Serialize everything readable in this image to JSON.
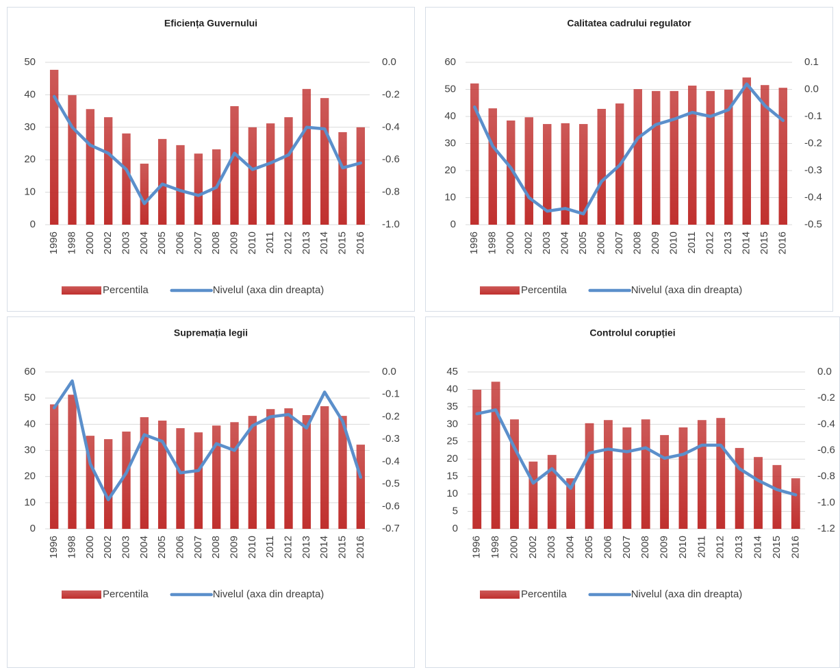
{
  "chart_data": [
    {
      "type": "combo",
      "title": "Eficiența Guvernului",
      "categories": [
        "1996",
        "1998",
        "2000",
        "2002",
        "2003",
        "2004",
        "2005",
        "2006",
        "2007",
        "2008",
        "2009",
        "2010",
        "2011",
        "2012",
        "2013",
        "2014",
        "2015",
        "2016"
      ],
      "series": [
        {
          "name": "Percentila",
          "color": "#c0302e",
          "values": [
            47.7,
            39.9,
            35.6,
            33.1,
            28.1,
            18.8,
            26.4,
            24.5,
            21.9,
            23.2,
            36.5,
            30.0,
            31.2,
            33.1,
            41.8,
            39.0,
            28.5,
            30.0
          ]
        },
        {
          "name": "Nivelul (axa din dreapta)",
          "color": "#5b8fcb",
          "axis": "y2",
          "values": [
            -0.21,
            -0.4,
            -0.51,
            -0.56,
            -0.66,
            -0.87,
            -0.75,
            -0.79,
            -0.82,
            -0.77,
            -0.56,
            -0.66,
            -0.62,
            -0.57,
            -0.4,
            -0.41,
            -0.65,
            -0.62
          ]
        }
      ],
      "ylim": [
        0,
        50
      ],
      "yticks": [
        0,
        10,
        20,
        30,
        40,
        50
      ],
      "y2lim": [
        -1,
        0
      ],
      "y2ticks": [
        {
          "value": 0,
          "label": "0.0"
        },
        -0.2,
        -0.4,
        -0.6,
        -0.8,
        {
          "value": -1,
          "label": "-1.0"
        }
      ],
      "grid": true
    },
    {
      "type": "combo",
      "title": "Calitatea cadrului regulator",
      "categories": [
        "1996",
        "1998",
        "2000",
        "2002",
        "2003",
        "2004",
        "2005",
        "2006",
        "2007",
        "2008",
        "2009",
        "2010",
        "2011",
        "2012",
        "2013",
        "2014",
        "2015",
        "2016"
      ],
      "series": [
        {
          "name": "Percentila",
          "color": "#c0302e",
          "values": [
            52.2,
            43.0,
            38.5,
            39.7,
            37.2,
            37.5,
            37.2,
            42.8,
            44.8,
            50.1,
            49.4,
            49.4,
            51.4,
            49.4,
            49.9,
            54.4,
            51.6,
            50.6
          ]
        },
        {
          "name": "Nivelul (axa din dreapta)",
          "color": "#5b8fcb",
          "axis": "y2",
          "values": [
            -0.065,
            -0.21,
            -0.29,
            -0.4,
            -0.45,
            -0.44,
            -0.46,
            -0.34,
            -0.28,
            -0.18,
            -0.13,
            -0.11,
            -0.085,
            -0.1,
            -0.075,
            0.02,
            -0.06,
            -0.115
          ]
        }
      ],
      "ylim": [
        0,
        60
      ],
      "yticks": [
        0,
        10,
        20,
        30,
        40,
        50,
        60
      ],
      "y2lim": [
        -0.5,
        0.1
      ],
      "y2ticks": [
        0.1,
        {
          "value": 0,
          "label": "0.0"
        },
        -0.1,
        -0.2,
        -0.3,
        -0.4,
        -0.5
      ],
      "grid": true
    },
    {
      "type": "combo",
      "title": "Supremația legii",
      "categories": [
        "1996",
        "1998",
        "2000",
        "2002",
        "2003",
        "2004",
        "2005",
        "2006",
        "2007",
        "2008",
        "2009",
        "2010",
        "2011",
        "2012",
        "2013",
        "2014",
        "2015",
        "2016"
      ],
      "series": [
        {
          "name": "Percentila",
          "color": "#c0302e",
          "values": [
            47.6,
            51.3,
            35.6,
            34.3,
            37.2,
            42.7,
            41.4,
            38.5,
            36.9,
            39.5,
            40.8,
            43.2,
            45.8,
            46.1,
            43.5,
            46.9,
            43.2,
            32.2
          ]
        },
        {
          "name": "Nivelul (axa din dreapta)",
          "color": "#5b8fcb",
          "axis": "y2",
          "values": [
            -0.16,
            -0.04,
            -0.41,
            -0.57,
            -0.45,
            -0.28,
            -0.31,
            -0.45,
            -0.44,
            -0.32,
            -0.35,
            -0.24,
            -0.2,
            -0.19,
            -0.25,
            -0.09,
            -0.22,
            -0.47
          ]
        }
      ],
      "ylim": [
        0,
        60
      ],
      "yticks": [
        0,
        10,
        20,
        30,
        40,
        50,
        60
      ],
      "y2lim": [
        -0.7,
        0
      ],
      "y2ticks": [
        {
          "value": 0,
          "label": "0.0"
        },
        -0.1,
        -0.2,
        -0.3,
        -0.4,
        -0.5,
        -0.6,
        -0.7
      ],
      "grid": true
    },
    {
      "type": "combo",
      "title": "Controlul corupției",
      "categories": [
        "1996",
        "1998",
        "2000",
        "2002",
        "2003",
        "2004",
        "2005",
        "2006",
        "2007",
        "2008",
        "2009",
        "2010",
        "2011",
        "2012",
        "2013",
        "2014",
        "2015",
        "2016"
      ],
      "series": [
        {
          "name": "Percentila",
          "color": "#c0302e",
          "values": [
            39.9,
            42.2,
            31.4,
            19.3,
            21.2,
            14.5,
            30.3,
            31.2,
            29.1,
            31.4,
            26.9,
            29.1,
            31.2,
            31.8,
            23.2,
            20.6,
            18.3,
            14.5
          ]
        },
        {
          "name": "Nivelul (axa din dreapta)",
          "color": "#5b8fcb",
          "axis": "y2",
          "values": [
            -0.32,
            -0.29,
            -0.58,
            -0.85,
            -0.74,
            -0.89,
            -0.62,
            -0.59,
            -0.61,
            -0.58,
            -0.66,
            -0.63,
            -0.56,
            -0.56,
            -0.74,
            -0.83,
            -0.9,
            -0.94
          ]
        }
      ],
      "ylim": [
        0,
        45
      ],
      "yticks": [
        0,
        5,
        10,
        15,
        20,
        25,
        30,
        35,
        40,
        45
      ],
      "y2lim": [
        -1.2,
        0
      ],
      "y2ticks": [
        {
          "value": 0,
          "label": "0.0"
        },
        -0.2,
        -0.4,
        -0.6,
        -0.8,
        {
          "value": -1,
          "label": "-1.0"
        },
        -1.2
      ],
      "grid": true
    }
  ]
}
